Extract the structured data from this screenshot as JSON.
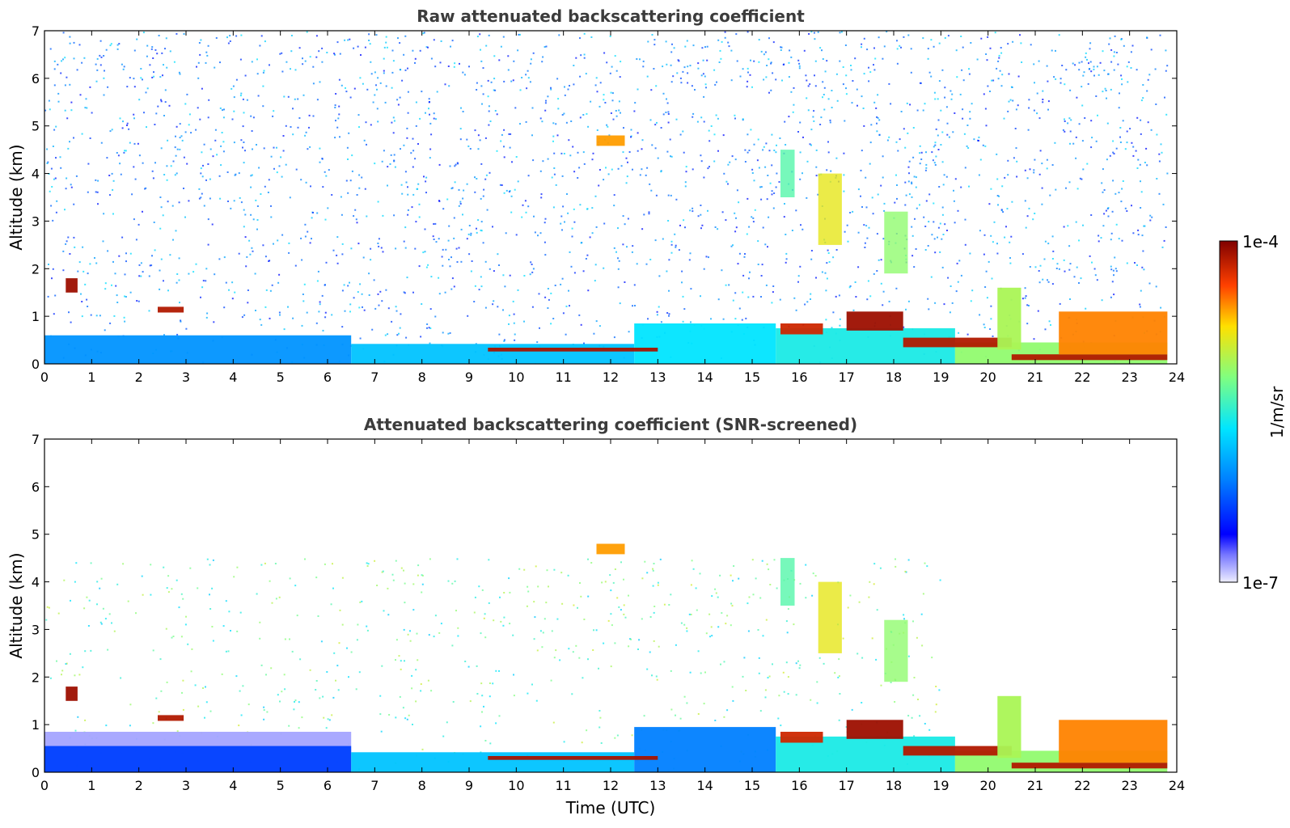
{
  "figure": {
    "xlabel": "Time (UTC)",
    "colorbar": {
      "label": "1/m/sr",
      "max_label": "1e-4",
      "min_label": "1e-7"
    }
  },
  "chart_data": [
    {
      "type": "heatmap",
      "title": "Raw attenuated backscattering coefficient",
      "xlabel": "",
      "ylabel": "Altitude (km)",
      "xlim": [
        0,
        24
      ],
      "ylim": [
        0,
        7
      ],
      "x_ticks": [
        0,
        1,
        2,
        3,
        4,
        5,
        6,
        7,
        8,
        9,
        10,
        11,
        12,
        13,
        14,
        15,
        16,
        17,
        18,
        19,
        20,
        21,
        22,
        23,
        24
      ],
      "y_ticks": [
        0,
        1,
        2,
        3,
        4,
        5,
        6,
        7
      ],
      "colorscale": "jet (log)",
      "noise_level": 0.3,
      "noise_top_km": 7,
      "noise_end_time": 23.8,
      "layers": [
        {
          "desc": "boundary layer",
          "t0": 0,
          "t1": 6.5,
          "h0": 0,
          "h1": 0.6,
          "level": 0.33
        },
        {
          "desc": "boundary layer",
          "t0": 6.5,
          "t1": 12.5,
          "h0": 0,
          "h1": 0.42,
          "level": 0.4
        },
        {
          "desc": "boundary layer",
          "t0": 12.5,
          "t1": 15.5,
          "h0": 0,
          "h1": 0.85,
          "level": 0.45
        },
        {
          "desc": "boundary layer",
          "t0": 15.5,
          "t1": 19.3,
          "h0": 0,
          "h1": 0.75,
          "level": 0.48
        },
        {
          "desc": "boundary layer",
          "t0": 19.3,
          "t1": 23.8,
          "h0": 0,
          "h1": 0.45,
          "level": 0.62
        },
        {
          "desc": "cloud",
          "t0": 0.45,
          "t1": 0.7,
          "h0": 1.5,
          "h1": 1.8,
          "level": 0.97
        },
        {
          "desc": "cloud",
          "t0": 2.4,
          "t1": 2.95,
          "h0": 1.08,
          "h1": 1.2,
          "level": 0.95
        },
        {
          "desc": "cloud",
          "t0": 11.7,
          "t1": 12.3,
          "h0": 4.58,
          "h1": 4.8,
          "level": 0.8
        },
        {
          "desc": "cloud",
          "t0": 9.4,
          "t1": 13.0,
          "h0": 0.26,
          "h1": 0.34,
          "level": 0.96
        },
        {
          "desc": "cloud",
          "t0": 15.6,
          "t1": 16.5,
          "h0": 0.62,
          "h1": 0.85,
          "level": 0.92
        },
        {
          "desc": "cloud",
          "t0": 17.0,
          "t1": 18.2,
          "h0": 0.7,
          "h1": 1.1,
          "level": 0.97
        },
        {
          "desc": "cloud",
          "t0": 18.2,
          "t1": 20.5,
          "h0": 0.35,
          "h1": 0.55,
          "level": 0.95
        },
        {
          "desc": "cloud",
          "t0": 20.5,
          "t1": 23.8,
          "h0": 0.08,
          "h1": 0.2,
          "level": 0.95
        },
        {
          "desc": "cloud",
          "t0": 21.5,
          "t1": 23.8,
          "h0": 0.2,
          "h1": 1.1,
          "level": 0.82
        },
        {
          "desc": "cloud",
          "t0": 20.2,
          "t1": 20.7,
          "h0": 0.3,
          "h1": 1.6,
          "level": 0.65
        },
        {
          "desc": "virga",
          "t0": 16.4,
          "t1": 16.9,
          "h0": 2.5,
          "h1": 4.0,
          "level": 0.72
        },
        {
          "desc": "virga",
          "t0": 17.8,
          "t1": 18.3,
          "h0": 1.9,
          "h1": 3.2,
          "level": 0.62
        },
        {
          "desc": "virga",
          "t0": 15.6,
          "t1": 15.9,
          "h0": 3.5,
          "h1": 4.5,
          "level": 0.55
        }
      ]
    },
    {
      "type": "heatmap",
      "title": "Attenuated backscattering coefficient (SNR-screened)",
      "xlabel": "Time (UTC)",
      "ylabel": "Altitude (km)",
      "xlim": [
        0,
        24
      ],
      "ylim": [
        0,
        7
      ],
      "x_ticks": [
        0,
        1,
        2,
        3,
        4,
        5,
        6,
        7,
        8,
        9,
        10,
        11,
        12,
        13,
        14,
        15,
        16,
        17,
        18,
        19,
        20,
        21,
        22,
        23,
        24
      ],
      "y_ticks": [
        0,
        1,
        2,
        3,
        4,
        5,
        6,
        7
      ],
      "colorscale": "jet (log)",
      "noise_level": 0.55,
      "noise_top_km": 4.5,
      "noise_end_time": 19.0,
      "layers": [
        {
          "desc": "boundary layer",
          "t0": 0,
          "t1": 6.5,
          "h0": 0,
          "h1": 0.85,
          "level": 0.05
        },
        {
          "desc": "boundary layer",
          "t0": 0,
          "t1": 6.5,
          "h0": 0,
          "h1": 0.55,
          "level": 0.22
        },
        {
          "desc": "boundary layer",
          "t0": 6.5,
          "t1": 12.5,
          "h0": 0,
          "h1": 0.42,
          "level": 0.4
        },
        {
          "desc": "boundary layer",
          "t0": 12.5,
          "t1": 15.5,
          "h0": 0,
          "h1": 0.95,
          "level": 0.3
        },
        {
          "desc": "boundary layer",
          "t0": 15.5,
          "t1": 19.3,
          "h0": 0,
          "h1": 0.75,
          "level": 0.48
        },
        {
          "desc": "boundary layer",
          "t0": 19.3,
          "t1": 23.8,
          "h0": 0,
          "h1": 0.45,
          "level": 0.62
        },
        {
          "desc": "cloud",
          "t0": 0.45,
          "t1": 0.7,
          "h0": 1.5,
          "h1": 1.8,
          "level": 0.97
        },
        {
          "desc": "cloud",
          "t0": 2.4,
          "t1": 2.95,
          "h0": 1.08,
          "h1": 1.2,
          "level": 0.95
        },
        {
          "desc": "cloud",
          "t0": 11.7,
          "t1": 12.3,
          "h0": 4.58,
          "h1": 4.8,
          "level": 0.8
        },
        {
          "desc": "cloud",
          "t0": 9.4,
          "t1": 13.0,
          "h0": 0.26,
          "h1": 0.34,
          "level": 0.96
        },
        {
          "desc": "cloud",
          "t0": 15.6,
          "t1": 16.5,
          "h0": 0.62,
          "h1": 0.85,
          "level": 0.92
        },
        {
          "desc": "cloud",
          "t0": 17.0,
          "t1": 18.2,
          "h0": 0.7,
          "h1": 1.1,
          "level": 0.97
        },
        {
          "desc": "cloud",
          "t0": 18.2,
          "t1": 20.5,
          "h0": 0.35,
          "h1": 0.55,
          "level": 0.95
        },
        {
          "desc": "cloud",
          "t0": 20.5,
          "t1": 23.8,
          "h0": 0.08,
          "h1": 0.2,
          "level": 0.95
        },
        {
          "desc": "cloud",
          "t0": 21.5,
          "t1": 23.8,
          "h0": 0.2,
          "h1": 1.1,
          "level": 0.82
        },
        {
          "desc": "cloud",
          "t0": 20.2,
          "t1": 20.7,
          "h0": 0.3,
          "h1": 1.6,
          "level": 0.65
        },
        {
          "desc": "virga",
          "t0": 16.4,
          "t1": 16.9,
          "h0": 2.5,
          "h1": 4.0,
          "level": 0.72
        },
        {
          "desc": "virga",
          "t0": 17.8,
          "t1": 18.3,
          "h0": 1.9,
          "h1": 3.2,
          "level": 0.62
        },
        {
          "desc": "virga",
          "t0": 15.6,
          "t1": 15.9,
          "h0": 3.5,
          "h1": 4.5,
          "level": 0.55
        }
      ]
    }
  ]
}
